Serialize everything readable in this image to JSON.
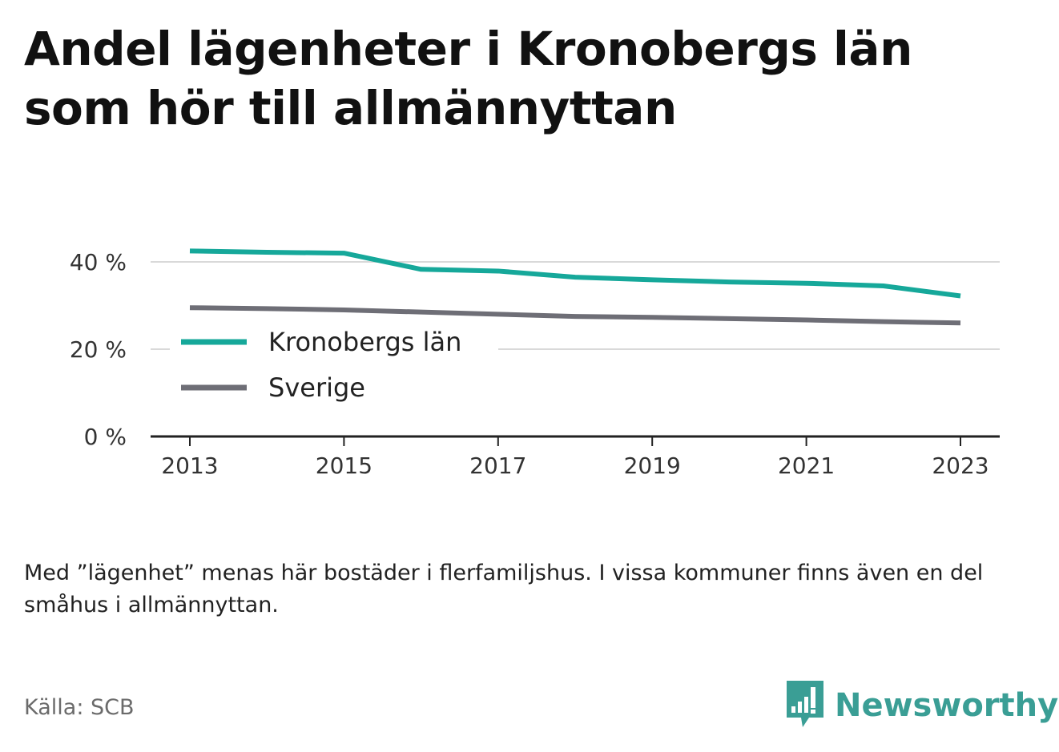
{
  "title": "Andel lägenheter i Kronobergs län som hör till allmännyttan",
  "note": "Med ”lägenhet” menas här bostäder i flerfamiljshus. I vissa kommuner finns även en del småhus i allmännyttan.",
  "source": "Källa: SCB",
  "brand": {
    "name": "Newsworthy",
    "icon": "bar-chart-bubble-icon",
    "color": "#3a9e95"
  },
  "chart_data": {
    "type": "line",
    "x": [
      2013,
      2014,
      2015,
      2016,
      2017,
      2018,
      2019,
      2020,
      2021,
      2022,
      2023
    ],
    "x_ticks": [
      "2013",
      "2015",
      "2017",
      "2019",
      "2021",
      "2023"
    ],
    "y_ticks": [
      "0 %",
      "20 %",
      "40 %"
    ],
    "ylim": [
      0,
      40
    ],
    "grid": true,
    "legend_position": "left",
    "series": [
      {
        "name": "Kronobergs län",
        "color": "#16a89a",
        "values": [
          42.5,
          42.2,
          42.0,
          38.3,
          37.9,
          36.5,
          35.9,
          35.4,
          35.1,
          34.5,
          32.2
        ]
      },
      {
        "name": "Sverige",
        "color": "#6e6e76",
        "values": [
          29.5,
          29.3,
          29.0,
          28.5,
          28.0,
          27.5,
          27.3,
          27.0,
          26.7,
          26.3,
          26.0
        ]
      }
    ]
  }
}
